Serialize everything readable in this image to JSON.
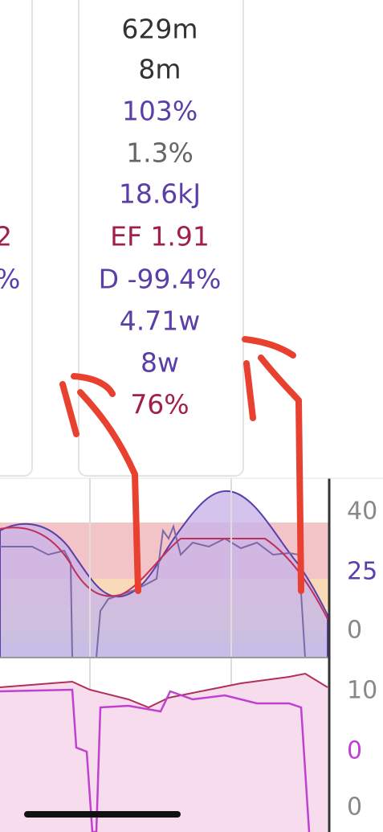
{
  "left_card": {
    "values": [
      "2",
      "%"
    ]
  },
  "stats_card": {
    "values": [
      "629m",
      "8m",
      "103%",
      "1.3%",
      "18.6kJ",
      "EF 1.91",
      "D -99.4%",
      "4.71w",
      "8w",
      "76%"
    ]
  },
  "chart_axes": {
    "top": [
      "40",
      "25",
      "0"
    ],
    "bottom": [
      "10",
      "0",
      "0"
    ]
  }
}
